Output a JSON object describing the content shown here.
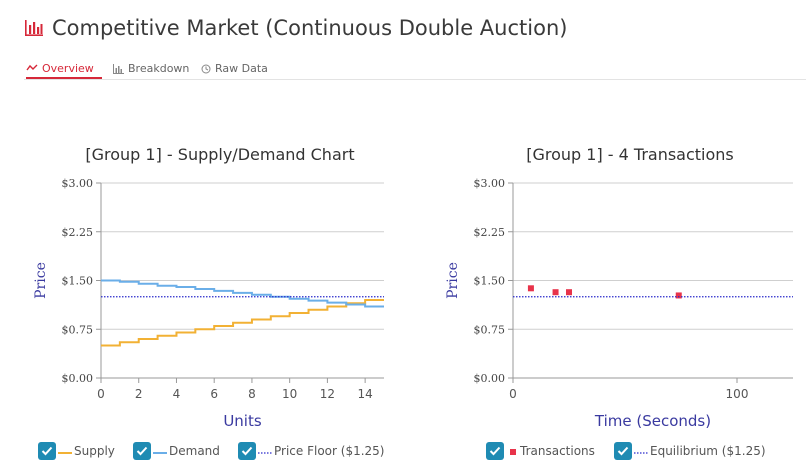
{
  "page": {
    "title": "Competitive Market (Continuous Double Auction)",
    "title_icon": "bar-chart-icon",
    "accent": "#d62839"
  },
  "tabs": [
    {
      "label": "Overview",
      "icon": "line-chart-icon",
      "active": true
    },
    {
      "label": "Breakdown",
      "icon": "bar-chart-icon",
      "active": false
    },
    {
      "label": "Raw Data",
      "icon": "clock-icon",
      "active": false
    }
  ],
  "chart_data": [
    {
      "type": "line",
      "title": "[Group 1] - Supply/Demand Chart",
      "xlabel": "Units",
      "ylabel": "Price",
      "xlim": [
        0,
        15
      ],
      "ylim": [
        0,
        3
      ],
      "x_ticks": [
        "0",
        "2",
        "4",
        "6",
        "8",
        "10",
        "12",
        "14"
      ],
      "y_ticks": [
        "$0.00",
        "$0.75",
        "$1.50",
        "$2.25",
        "$3.00"
      ],
      "grid": true,
      "legend_position": "bottom",
      "series": [
        {
          "name": "Supply",
          "style": "step",
          "color": "#f2b134",
          "values": [
            0.5,
            0.55,
            0.6,
            0.65,
            0.7,
            0.75,
            0.8,
            0.85,
            0.9,
            0.95,
            1.0,
            1.05,
            1.1,
            1.15,
            1.2
          ]
        },
        {
          "name": "Demand",
          "style": "step",
          "color": "#6aaee8",
          "values": [
            1.5,
            1.48,
            1.45,
            1.42,
            1.4,
            1.37,
            1.34,
            1.31,
            1.28,
            1.25,
            1.22,
            1.19,
            1.16,
            1.13,
            1.1
          ]
        },
        {
          "name": "Price Floor ($1.25)",
          "style": "dotted",
          "color": "#2b2bcc",
          "value": 1.25
        }
      ]
    },
    {
      "type": "scatter",
      "title": "[Group 1] - 4 Transactions",
      "xlabel": "Time (Seconds)",
      "ylabel": "Price",
      "xlim": [
        0,
        125
      ],
      "ylim": [
        0,
        3
      ],
      "x_ticks": [
        "0",
        "100"
      ],
      "y_ticks": [
        "$0.00",
        "$0.75",
        "$1.50",
        "$2.25",
        "$3.00"
      ],
      "grid": true,
      "legend_position": "bottom",
      "series": [
        {
          "name": "Transactions",
          "style": "square",
          "color": "#e8334a",
          "points": [
            {
              "x": 8,
              "y": 1.38
            },
            {
              "x": 19,
              "y": 1.32
            },
            {
              "x": 25,
              "y": 1.32
            },
            {
              "x": 74,
              "y": 1.27
            }
          ]
        },
        {
          "name": "Equilibrium ($1.25)",
          "style": "dotted",
          "color": "#2b2bcc",
          "value": 1.25
        }
      ]
    }
  ]
}
